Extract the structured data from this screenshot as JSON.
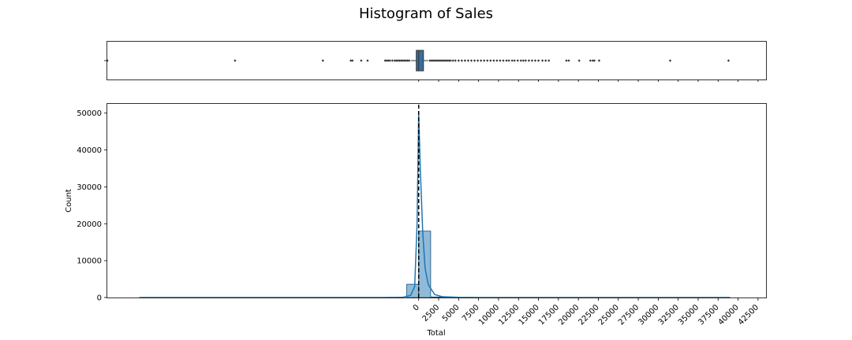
{
  "chart_data": {
    "type": "histogram",
    "title": "Histogram of Sales",
    "xlabel": "Total",
    "ylabel": "Count",
    "xlim": [
      -39000,
      43500
    ],
    "ylim": [
      0,
      52500
    ],
    "x_ticks": [
      0,
      2500,
      5000,
      7500,
      10000,
      12500,
      15000,
      17500,
      20000,
      22500,
      25000,
      27500,
      30000,
      32500,
      35000,
      37500,
      40000,
      42500
    ],
    "y_ticks": [
      0,
      10000,
      20000,
      30000,
      40000,
      50000
    ],
    "mean_line_x": 0,
    "bins": [
      {
        "x0": -1500,
        "x1": 0,
        "count": 3600
      },
      {
        "x0": 0,
        "x1": 1500,
        "count": 18000
      },
      {
        "x0": 1500,
        "x1": 3000,
        "count": 150
      },
      {
        "x0": 3000,
        "x1": 4500,
        "count": 60
      }
    ],
    "kde": {
      "x": [
        -35000,
        -5000,
        -2000,
        -1000,
        -500,
        -200,
        0,
        200,
        500,
        800,
        1200,
        2000,
        3000,
        5000,
        8000,
        39000
      ],
      "y": [
        0,
        0,
        50,
        600,
        3000,
        20000,
        50000,
        35000,
        18000,
        8000,
        3500,
        800,
        200,
        50,
        0,
        0
      ]
    },
    "boxplot": {
      "q1": -300,
      "median": 0,
      "q3": 600,
      "whisker_low": -1000,
      "whisker_high": 1200,
      "outliers": [
        -39000,
        -23000,
        -12000,
        -8500,
        -8300,
        -7200,
        -6400,
        -4200,
        -4000,
        -3800,
        -3600,
        -3300,
        -3000,
        -2800,
        -2600,
        -2400,
        -2200,
        -2000,
        -1800,
        -1600,
        -1400,
        -1200,
        1400,
        1600,
        1800,
        2000,
        2200,
        2400,
        2600,
        2800,
        3000,
        3200,
        3400,
        3600,
        3800,
        4000,
        4300,
        4600,
        5000,
        5400,
        5800,
        6200,
        6600,
        7000,
        7400,
        7800,
        8200,
        8600,
        9000,
        9400,
        9800,
        10200,
        10600,
        11000,
        11300,
        11700,
        12000,
        12400,
        12800,
        13100,
        13400,
        13800,
        14200,
        14600,
        15000,
        15500,
        15900,
        16300,
        18500,
        18800,
        20100,
        21500,
        21800,
        22000,
        22600,
        31500,
        38800
      ]
    },
    "colors": {
      "bar": "#1f77b4",
      "box": "#3a6d9b",
      "kde": "#1f77b4",
      "mean_line": "#000000"
    }
  }
}
